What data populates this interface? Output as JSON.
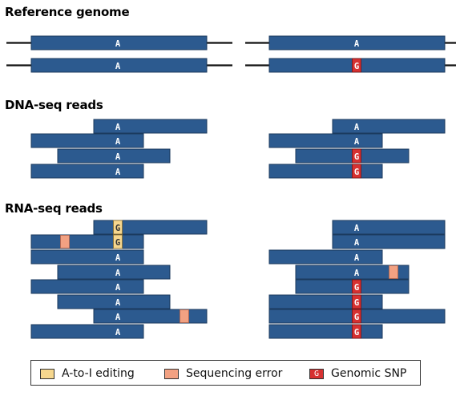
{
  "sections": {
    "reference": "Reference genome",
    "dna": "DNA-seq reads",
    "rna": "RNA-seq reads"
  },
  "base_labels": {
    "a": "A",
    "g": "G"
  },
  "colors": {
    "read": "#2c5a8f",
    "read_border": "#1b3a5e",
    "flank_line": "#111111",
    "editing": "#f6d78e",
    "seq_error": "#f2a182",
    "snp": "#d63131",
    "text_on_read": "#ffffff",
    "text_on_editing": "#333333"
  },
  "panels": {
    "reference": {
      "left": [
        {
          "label": "A",
          "kind": "ref"
        },
        {
          "label": "A",
          "kind": "ref"
        }
      ],
      "right": [
        {
          "label": "A",
          "kind": "ref"
        },
        {
          "label": "G",
          "kind": "snp"
        }
      ]
    },
    "dna": {
      "left": [
        {
          "label": "A",
          "kind": "ref"
        },
        {
          "label": "A",
          "kind": "ref"
        },
        {
          "label": "A",
          "kind": "ref"
        },
        {
          "label": "A",
          "kind": "ref"
        }
      ],
      "right": [
        {
          "label": "A",
          "kind": "ref"
        },
        {
          "label": "A",
          "kind": "ref"
        },
        {
          "label": "G",
          "kind": "snp"
        },
        {
          "label": "G",
          "kind": "snp"
        }
      ]
    },
    "rna": {
      "left": [
        {
          "label": "G",
          "kind": "editing",
          "error": false
        },
        {
          "label": "G",
          "kind": "editing",
          "error": true
        },
        {
          "label": "A",
          "kind": "ref",
          "error": false
        },
        {
          "label": "A",
          "kind": "ref",
          "error": false
        },
        {
          "label": "A",
          "kind": "ref",
          "error": false
        },
        {
          "label": "A",
          "kind": "ref",
          "error": false
        },
        {
          "label": "A",
          "kind": "ref",
          "error": true
        },
        {
          "label": "A",
          "kind": "ref",
          "error": false
        }
      ],
      "right": [
        {
          "label": "A",
          "kind": "ref",
          "error": false
        },
        {
          "label": "A",
          "kind": "ref",
          "error": false
        },
        {
          "label": "A",
          "kind": "ref",
          "error": false
        },
        {
          "label": "A",
          "kind": "ref",
          "error": true
        },
        {
          "label": "G",
          "kind": "snp",
          "error": false
        },
        {
          "label": "G",
          "kind": "snp",
          "error": false
        },
        {
          "label": "G",
          "kind": "snp",
          "error": false
        },
        {
          "label": "G",
          "kind": "snp",
          "error": false
        }
      ]
    }
  },
  "legend": {
    "editing": {
      "label": "A-to-I editing"
    },
    "error": {
      "label": "Sequencing error"
    },
    "snp": {
      "label": "Genomic SNP",
      "symbol": "G"
    }
  }
}
